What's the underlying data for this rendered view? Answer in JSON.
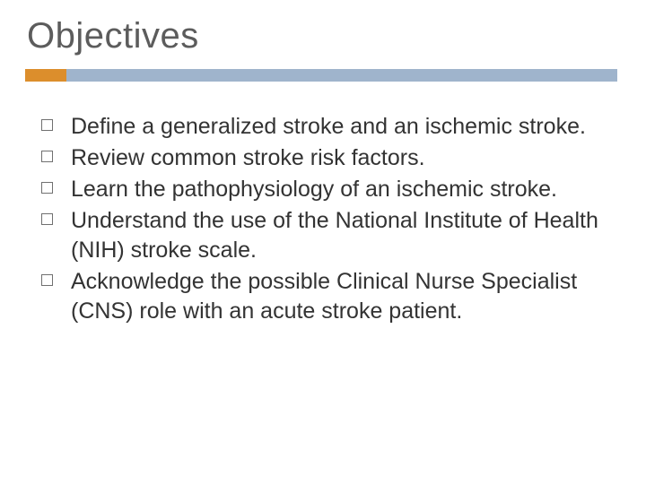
{
  "slide": {
    "title": "Objectives",
    "title_fontsize": 40,
    "title_color": "#5c5c5c",
    "accent_color": "#dc8e2c",
    "bar_color": "#9fb4cc",
    "background_color": "#ffffff",
    "bullets": [
      "Define a generalized stroke and an ischemic stroke.",
      "Review common stroke risk factors.",
      "Learn the pathophysiology of an ischemic stroke.",
      "Understand the use of the National Institute of Health (NIH) stroke scale.",
      "Acknowledge the possible Clinical Nurse Specialist (CNS) role with an acute stroke patient."
    ],
    "bullet_fontsize": 25,
    "bullet_color": "#333333",
    "bullet_marker_border": "#707070"
  }
}
